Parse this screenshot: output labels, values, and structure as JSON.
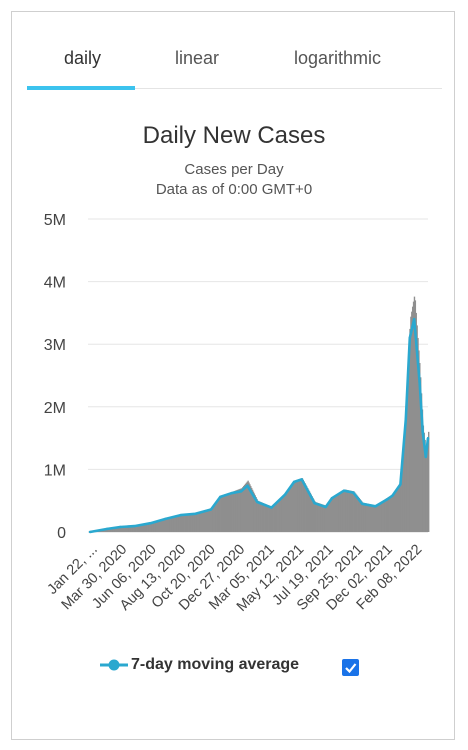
{
  "tabs": [
    {
      "label": "daily",
      "active": true
    },
    {
      "label": "linear",
      "active": false
    },
    {
      "label": "logarithmic",
      "active": false
    }
  ],
  "chart_data": {
    "type": "bar",
    "title": "Daily New Cases",
    "subtitle": "Cases per Day",
    "subtitle2": "Data as of 0:00 GMT+0",
    "xlabel": "",
    "ylabel": "",
    "ylim": [
      0,
      5000000
    ],
    "y_ticks": [
      {
        "value": 0,
        "label": "0"
      },
      {
        "value": 1000000,
        "label": "1M"
      },
      {
        "value": 2000000,
        "label": "2M"
      },
      {
        "value": 3000000,
        "label": "3M"
      },
      {
        "value": 4000000,
        "label": "4M"
      },
      {
        "value": 5000000,
        "label": "5M"
      }
    ],
    "x_tick_labels": [
      "Jan 22, ...",
      "Mar 30, 2020",
      "Jun 06, 2020",
      "Aug 13, 2020",
      "Oct 20, 2020",
      "Dec 27, 2020",
      "Mar 05, 2021",
      "May 12, 2021",
      "Jul 19, 2021",
      "Sep 25, 2021",
      "Dec 02, 2021",
      "Feb 08, 2022"
    ],
    "grid": true,
    "legend_position": "bottom",
    "bar_color": "#8f8f8f",
    "line_color": "#2aa8cf",
    "series": [
      {
        "name": "Daily New Cases",
        "kind": "bar",
        "x": [
          "2020-01-22",
          "2020-03-01",
          "2020-03-30",
          "2020-05-01",
          "2020-06-06",
          "2020-07-10",
          "2020-08-13",
          "2020-09-15",
          "2020-10-20",
          "2020-11-10",
          "2020-12-05",
          "2020-12-27",
          "2021-01-10",
          "2021-02-01",
          "2021-03-05",
          "2021-04-05",
          "2021-04-25",
          "2021-05-12",
          "2021-06-10",
          "2021-07-05",
          "2021-07-19",
          "2021-08-15",
          "2021-09-05",
          "2021-09-25",
          "2021-10-25",
          "2021-11-20",
          "2021-12-02",
          "2021-12-20",
          "2022-01-01",
          "2022-01-10",
          "2022-01-20",
          "2022-02-01",
          "2022-02-08",
          "2022-02-15",
          "2022-02-20"
        ],
        "values": [
          0,
          60000,
          90000,
          100000,
          150000,
          220000,
          280000,
          300000,
          380000,
          580000,
          640000,
          700000,
          820000,
          500000,
          400000,
          620000,
          820000,
          860000,
          480000,
          420000,
          560000,
          680000,
          650000,
          470000,
          420000,
          550000,
          600000,
          800000,
          2000000,
          3400000,
          3800000,
          2600000,
          1700000,
          1300000,
          1600000
        ]
      },
      {
        "name": "7-day moving average",
        "kind": "line",
        "x": [
          "2020-01-22",
          "2020-03-01",
          "2020-03-30",
          "2020-05-01",
          "2020-06-06",
          "2020-07-10",
          "2020-08-13",
          "2020-09-15",
          "2020-10-20",
          "2020-11-10",
          "2020-12-05",
          "2020-12-27",
          "2021-01-10",
          "2021-02-01",
          "2021-03-05",
          "2021-04-05",
          "2021-04-25",
          "2021-05-12",
          "2021-06-10",
          "2021-07-05",
          "2021-07-19",
          "2021-08-15",
          "2021-09-05",
          "2021-09-25",
          "2021-10-25",
          "2021-11-20",
          "2021-12-02",
          "2021-12-20",
          "2022-01-01",
          "2022-01-10",
          "2022-01-20",
          "2022-02-01",
          "2022-02-08",
          "2022-02-15",
          "2022-02-20"
        ],
        "values": [
          0,
          50000,
          80000,
          95000,
          140000,
          210000,
          270000,
          290000,
          360000,
          560000,
          620000,
          650000,
          740000,
          480000,
          390000,
          600000,
          800000,
          840000,
          460000,
          400000,
          540000,
          660000,
          630000,
          450000,
          410000,
          520000,
          580000,
          760000,
          1800000,
          3100000,
          3400000,
          2400000,
          1600000,
          1200000,
          1500000
        ]
      }
    ]
  },
  "legend": {
    "label": "7-day moving average",
    "checked": true
  }
}
